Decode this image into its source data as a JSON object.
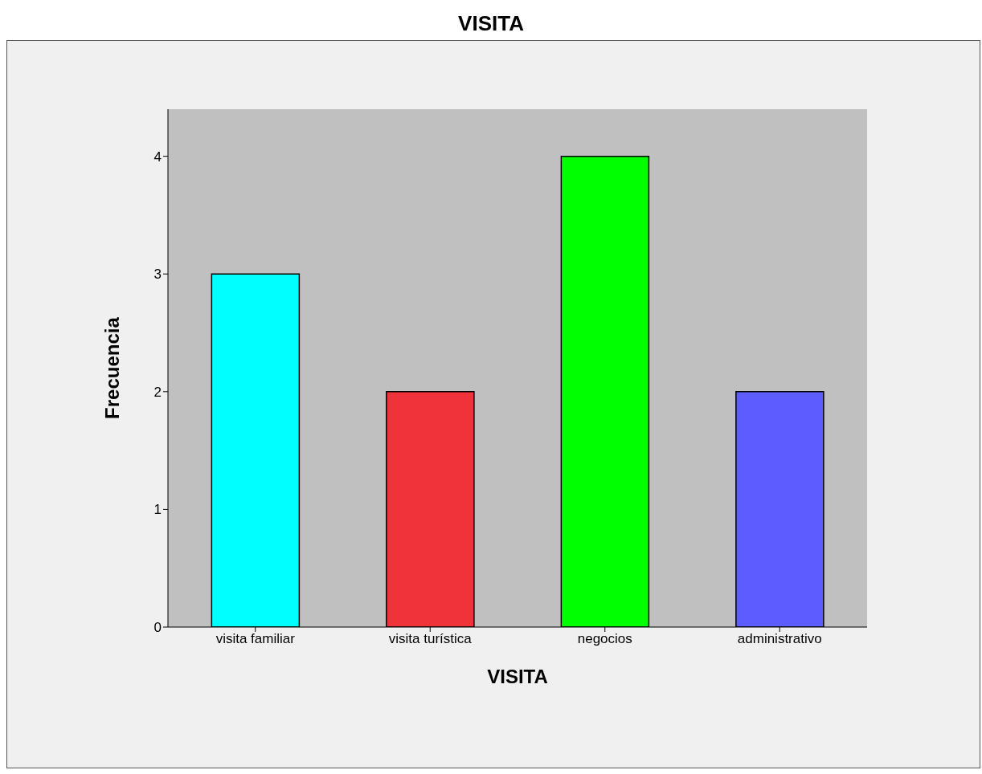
{
  "chart_data": {
    "type": "bar",
    "title": "VISITA",
    "xlabel": "VISITA",
    "ylabel": "Frecuencia",
    "categories": [
      "visita familiar",
      "visita turística",
      "negocios",
      "administrativo"
    ],
    "values": [
      3,
      2,
      4,
      2
    ],
    "colors": [
      "#00ffff",
      "#f0323a",
      "#00ff00",
      "#5c5cff"
    ],
    "ylim": [
      0,
      4.4
    ],
    "yticks": [
      0,
      1,
      2,
      3,
      4
    ],
    "grid": false
  }
}
